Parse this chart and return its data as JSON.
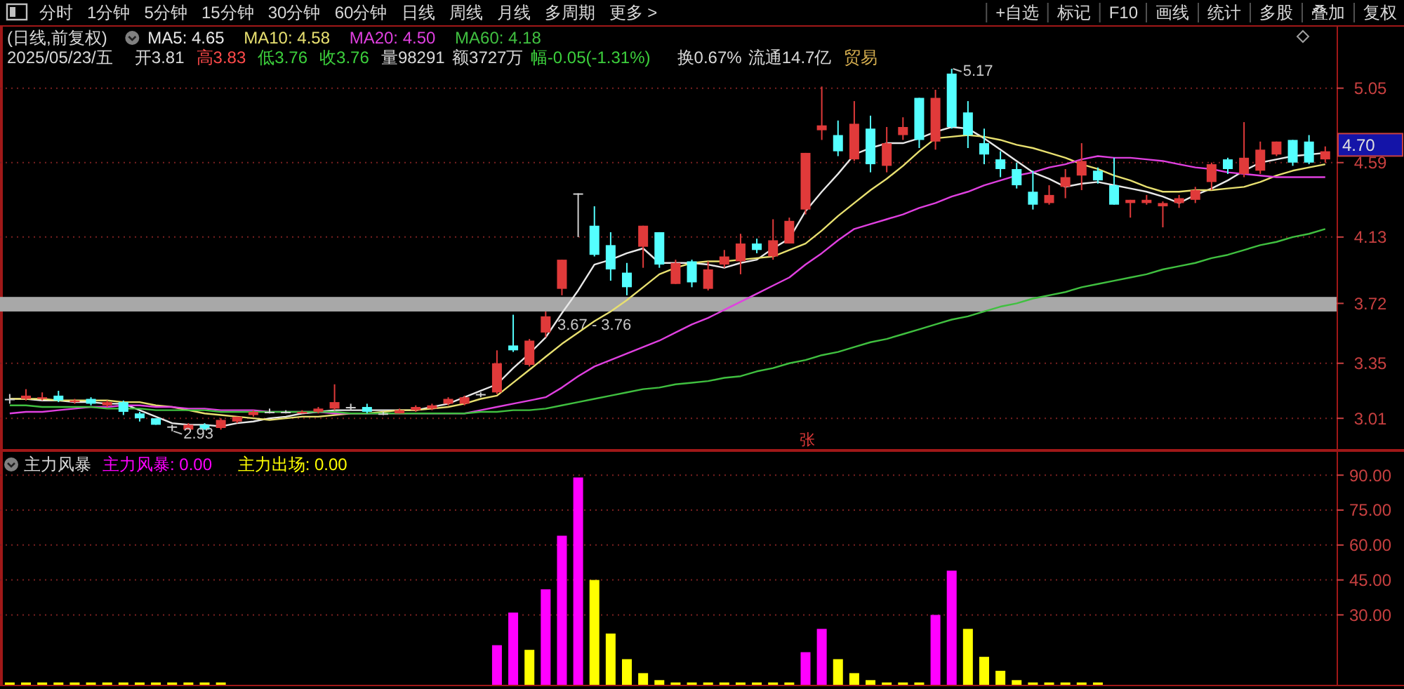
{
  "chart_data": [
    {
      "type": "other",
      "annotations": [
        "分时",
        "1分钟",
        "5分钟",
        "15分钟",
        "30分钟",
        "60分钟",
        "日线",
        "周线",
        "月线",
        "多周期",
        "更多 >"
      ]
    },
    {
      "type": "other",
      "annotations": [
        "复权",
        "叠加",
        "多股",
        "统计",
        "画线",
        "F10",
        "标记",
        "+自选"
      ]
    },
    {
      "type": "other",
      "annotations": [
        "2025/05/23/五",
        "开3.81",
        "高3.83",
        "低3.76",
        "收3.76",
        "量98291",
        "额3727万",
        "幅-0.05(-1.31%)",
        "换0.67%",
        "流通14.7亿",
        "贸易"
      ]
    },
    {
      "type": "candlestick",
      "title": "(日线,前复权)",
      "legend": "top left",
      "grid": "y",
      "tick_labels": "y",
      "categories": [
        null,
        null,
        null,
        null,
        null,
        null,
        null,
        null,
        null,
        null,
        null,
        null,
        null,
        null,
        null,
        null,
        null,
        null,
        null,
        null,
        null,
        null,
        null,
        null,
        null,
        null,
        null,
        null,
        null,
        null,
        null,
        null,
        null,
        null,
        null,
        null,
        null,
        null,
        null,
        null,
        null,
        null,
        null,
        null,
        null,
        null,
        null,
        null,
        null,
        null,
        null,
        null,
        null,
        null,
        null,
        null,
        null,
        null,
        null,
        null,
        null,
        null,
        null,
        null,
        null,
        null,
        null,
        null,
        null,
        null,
        null,
        null,
        null,
        null,
        null,
        null,
        null,
        null,
        null,
        null,
        null,
        null
      ],
      "ylim": [
        2.82,
        5.43
      ],
      "yticks": [
        3.01,
        3.35,
        3.72,
        4.13,
        4.59,
        5.05
      ],
      "ohlc": [
        [
          3.13,
          3.16,
          3.1,
          3.13
        ],
        [
          3.13,
          3.19,
          3.12,
          3.15
        ],
        [
          3.13,
          3.17,
          3.12,
          3.14
        ],
        [
          3.15,
          3.18,
          3.11,
          3.12
        ],
        [
          3.11,
          3.13,
          3.1,
          3.12
        ],
        [
          3.13,
          3.14,
          3.09,
          3.1
        ],
        [
          3.09,
          3.12,
          3.08,
          3.11
        ],
        [
          3.11,
          3.12,
          3.03,
          3.05
        ],
        [
          3.04,
          3.05,
          2.99,
          3.01
        ],
        [
          3.01,
          3.01,
          2.97,
          2.97
        ],
        [
          2.96,
          2.97,
          2.93,
          2.96
        ],
        [
          2.94,
          2.98,
          2.94,
          2.97
        ],
        [
          2.97,
          2.98,
          2.94,
          2.94
        ],
        [
          2.95,
          3.01,
          2.94,
          3.0
        ],
        [
          2.99,
          3.02,
          2.98,
          3.02
        ],
        [
          3.03,
          3.06,
          3.02,
          3.05
        ],
        [
          3.05,
          3.07,
          3.04,
          3.05
        ],
        [
          3.05,
          3.06,
          3.04,
          3.05
        ],
        [
          3.04,
          3.06,
          3.04,
          3.05
        ],
        [
          3.05,
          3.08,
          3.04,
          3.07
        ],
        [
          3.07,
          3.22,
          3.06,
          3.11
        ],
        [
          3.08,
          3.1,
          3.06,
          3.08
        ],
        [
          3.08,
          3.1,
          3.04,
          3.05
        ],
        [
          3.04,
          3.05,
          3.03,
          3.04
        ],
        [
          3.04,
          3.07,
          3.04,
          3.06
        ],
        [
          3.06,
          3.09,
          3.05,
          3.08
        ],
        [
          3.07,
          3.1,
          3.06,
          3.09
        ],
        [
          3.1,
          3.14,
          3.09,
          3.13
        ],
        [
          3.1,
          3.15,
          3.09,
          3.14
        ],
        [
          3.16,
          3.17,
          3.14,
          3.16
        ],
        [
          3.17,
          3.43,
          3.16,
          3.35
        ],
        [
          3.46,
          3.65,
          3.42,
          3.43
        ],
        [
          3.34,
          3.5,
          3.33,
          3.49
        ],
        [
          3.54,
          3.67,
          3.51,
          3.64
        ],
        [
          3.81,
          3.99,
          3.77,
          3.99
        ],
        [
          4.4,
          4.4,
          4.13,
          4.4
        ],
        [
          4.2,
          4.32,
          4.01,
          4.02
        ],
        [
          4.08,
          4.16,
          3.86,
          3.93
        ],
        [
          3.91,
          3.97,
          3.77,
          3.82
        ],
        [
          4.07,
          4.2,
          3.94,
          4.2
        ],
        [
          4.16,
          4.16,
          3.94,
          3.96
        ],
        [
          3.84,
          3.99,
          3.84,
          3.97
        ],
        [
          3.98,
          3.99,
          3.82,
          3.85
        ],
        [
          3.81,
          3.98,
          3.8,
          3.93
        ],
        [
          3.96,
          4.05,
          3.94,
          4.01
        ],
        [
          3.98,
          4.15,
          3.9,
          4.09
        ],
        [
          4.09,
          4.12,
          4.03,
          4.05
        ],
        [
          4.01,
          4.24,
          3.99,
          4.11
        ],
        [
          4.09,
          4.25,
          4.09,
          4.23
        ],
        [
          4.3,
          4.65,
          4.27,
          4.65
        ],
        [
          4.79,
          5.06,
          4.73,
          4.82
        ],
        [
          4.76,
          4.85,
          4.63,
          4.66
        ],
        [
          4.61,
          4.97,
          4.6,
          4.83
        ],
        [
          4.8,
          4.88,
          4.53,
          4.58
        ],
        [
          4.57,
          4.81,
          4.53,
          4.71
        ],
        [
          4.76,
          4.87,
          4.73,
          4.81
        ],
        [
          4.99,
          4.99,
          4.68,
          4.73
        ],
        [
          4.72,
          5.04,
          4.67,
          4.99
        ],
        [
          5.14,
          5.17,
          4.8,
          4.81
        ],
        [
          4.9,
          4.97,
          4.68,
          4.76
        ],
        [
          4.71,
          4.8,
          4.58,
          4.64
        ],
        [
          4.61,
          4.66,
          4.5,
          4.55
        ],
        [
          4.55,
          4.59,
          4.43,
          4.45
        ],
        [
          4.41,
          4.54,
          4.3,
          4.33
        ],
        [
          4.34,
          4.45,
          4.33,
          4.39
        ],
        [
          4.44,
          4.55,
          4.37,
          4.5
        ],
        [
          4.51,
          4.71,
          4.42,
          4.6
        ],
        [
          4.54,
          4.56,
          4.46,
          4.48
        ],
        [
          4.45,
          4.62,
          4.33,
          4.33
        ],
        [
          4.34,
          4.36,
          4.25,
          4.36
        ],
        [
          4.34,
          4.39,
          4.33,
          4.36
        ],
        [
          4.32,
          4.35,
          4.19,
          4.34
        ],
        [
          4.34,
          4.39,
          4.31,
          4.37
        ],
        [
          4.36,
          4.44,
          4.34,
          4.42
        ],
        [
          4.47,
          4.59,
          4.42,
          4.58
        ],
        [
          4.61,
          4.62,
          4.52,
          4.55
        ],
        [
          4.52,
          4.84,
          4.5,
          4.62
        ],
        [
          4.54,
          4.72,
          4.52,
          4.67
        ],
        [
          4.64,
          4.72,
          4.63,
          4.72
        ],
        [
          4.73,
          4.73,
          4.57,
          4.59
        ],
        [
          4.72,
          4.76,
          4.58,
          4.59
        ],
        [
          4.61,
          4.69,
          4.59,
          4.66
        ]
      ],
      "series": [
        {
          "name": "MA5: 4.65",
          "type": "line",
          "color": "#e8e8e8",
          "values": [
            3.13,
            3.13,
            3.12,
            3.12,
            3.11,
            3.11,
            3.1,
            3.1,
            3.06,
            3.02,
            2.98,
            2.97,
            2.97,
            2.96,
            2.98,
            2.99,
            3.01,
            3.02,
            3.04,
            3.05,
            3.06,
            3.06,
            3.06,
            3.06,
            3.06,
            3.06,
            3.08,
            3.1,
            3.14,
            3.18,
            3.22,
            3.32,
            3.41,
            3.51,
            3.66,
            3.8,
            3.96,
            3.99,
            4.03,
            4.06,
            3.97,
            3.97,
            3.97,
            3.96,
            3.94,
            3.97,
            3.99,
            4.06,
            4.12,
            4.29,
            4.41,
            4.52,
            4.64,
            4.68,
            4.71,
            4.71,
            4.74,
            4.78,
            4.81,
            4.8,
            4.74,
            4.67,
            4.6,
            4.53,
            4.49,
            4.44,
            4.46,
            4.47,
            4.45,
            4.43,
            4.41,
            4.38,
            4.34,
            4.39,
            4.43,
            4.48,
            4.54,
            4.59,
            4.61,
            4.63,
            4.64,
            4.65
          ]
        },
        {
          "name": "MA10: 4.58",
          "type": "line",
          "color": "#e8e070",
          "values": [
            3.13,
            3.13,
            3.13,
            3.12,
            3.12,
            3.12,
            3.12,
            3.11,
            3.11,
            3.09,
            3.08,
            3.06,
            3.04,
            3.03,
            3.02,
            3.01,
            3.0,
            3.01,
            3.02,
            3.02,
            3.03,
            3.04,
            3.04,
            3.05,
            3.06,
            3.06,
            3.07,
            3.08,
            3.1,
            3.13,
            3.15,
            3.23,
            3.31,
            3.39,
            3.47,
            3.54,
            3.61,
            3.67,
            3.74,
            3.82,
            3.9,
            3.94,
            3.97,
            3.98,
            3.98,
            3.99,
            4.0,
            4.01,
            4.05,
            4.09,
            4.17,
            4.26,
            4.34,
            4.42,
            4.49,
            4.57,
            4.66,
            4.74,
            4.75,
            4.76,
            4.75,
            4.73,
            4.7,
            4.68,
            4.65,
            4.62,
            4.58,
            4.55,
            4.51,
            4.48,
            4.44,
            4.41,
            4.41,
            4.42,
            4.42,
            4.43,
            4.44,
            4.47,
            4.51,
            4.54,
            4.56,
            4.58
          ]
        },
        {
          "name": "MA20: 4.50",
          "type": "line",
          "color": "#e040e0",
          "values": [
            3.04,
            3.05,
            3.05,
            3.06,
            3.07,
            3.08,
            3.08,
            3.09,
            3.09,
            3.08,
            3.08,
            3.07,
            3.07,
            3.06,
            3.06,
            3.06,
            3.05,
            3.05,
            3.05,
            3.05,
            3.04,
            3.04,
            3.04,
            3.04,
            3.04,
            3.04,
            3.04,
            3.04,
            3.04,
            3.06,
            3.08,
            3.1,
            3.12,
            3.14,
            3.2,
            3.27,
            3.33,
            3.37,
            3.41,
            3.45,
            3.49,
            3.54,
            3.59,
            3.63,
            3.68,
            3.73,
            3.78,
            3.83,
            3.88,
            3.96,
            4.03,
            4.11,
            4.18,
            4.21,
            4.24,
            4.27,
            4.31,
            4.34,
            4.38,
            4.41,
            4.45,
            4.48,
            4.51,
            4.53,
            4.56,
            4.58,
            4.61,
            4.63,
            4.62,
            4.62,
            4.61,
            4.6,
            4.58,
            4.56,
            4.55,
            4.53,
            4.52,
            4.51,
            4.5,
            4.5,
            4.5,
            4.5
          ]
        },
        {
          "name": "MA60: 4.18",
          "type": "line",
          "color": "#40c040",
          "values": [
            3.09,
            3.09,
            3.08,
            3.08,
            3.08,
            3.08,
            3.07,
            3.07,
            3.07,
            3.06,
            3.06,
            3.06,
            3.06,
            3.05,
            3.05,
            3.05,
            3.05,
            3.05,
            3.05,
            3.05,
            3.05,
            3.04,
            3.04,
            3.04,
            3.04,
            3.04,
            3.04,
            3.04,
            3.04,
            3.05,
            3.05,
            3.06,
            3.06,
            3.07,
            3.09,
            3.11,
            3.13,
            3.15,
            3.17,
            3.19,
            3.2,
            3.22,
            3.23,
            3.24,
            3.26,
            3.27,
            3.3,
            3.32,
            3.35,
            3.37,
            3.4,
            3.42,
            3.45,
            3.48,
            3.5,
            3.53,
            3.56,
            3.59,
            3.62,
            3.64,
            3.67,
            3.7,
            3.72,
            3.75,
            3.77,
            3.79,
            3.82,
            3.84,
            3.86,
            3.88,
            3.9,
            3.93,
            3.95,
            3.97,
            4.0,
            4.02,
            4.05,
            4.08,
            4.1,
            4.13,
            4.15,
            4.18
          ]
        }
      ],
      "bands": [
        {
          "axis": "y",
          "from": 3.67,
          "to": 3.76,
          "label": "3.67 - 3.76",
          "color": "#a8a8a8"
        }
      ],
      "annotations": [
        "5.17",
        "2.93",
        "张",
        "4.70"
      ]
    },
    {
      "type": "bar",
      "title": "主力风暴",
      "legend": "top left",
      "grid": "y",
      "tick_labels": "y",
      "categories": [
        null,
        null,
        null,
        null,
        null,
        null,
        null,
        null,
        null,
        null,
        null,
        null,
        null,
        null,
        null,
        null,
        null,
        null,
        null,
        null,
        null,
        null,
        null,
        null,
        null,
        null,
        null,
        null,
        null,
        null,
        null,
        null,
        null,
        null,
        null,
        null,
        null,
        null,
        null,
        null,
        null,
        null,
        null,
        null,
        null,
        null,
        null,
        null,
        null,
        null,
        null,
        null,
        null,
        null,
        null,
        null,
        null,
        null,
        null,
        null,
        null,
        null,
        null,
        null,
        null,
        null,
        null,
        null,
        null,
        null,
        null,
        null,
        null,
        null,
        null,
        null,
        null,
        null,
        null,
        null,
        null,
        null
      ],
      "ylim": [
        0,
        100
      ],
      "yticks": [
        {
          "value": 30,
          "label": "30.00"
        },
        {
          "value": 45,
          "label": "45.00"
        },
        {
          "value": 60,
          "label": "60.00"
        },
        {
          "value": 75,
          "label": "75.00"
        },
        {
          "value": 90,
          "label": "90.00"
        }
      ],
      "series": [
        {
          "name": "主力风暴: 0.00",
          "color": "#ff00ff",
          "values": [
            0,
            0,
            0,
            0,
            0,
            0,
            0,
            0,
            0,
            0,
            0,
            0,
            0,
            0,
            0,
            0,
            0,
            0,
            0,
            0,
            0,
            0,
            0,
            0,
            0,
            0,
            0,
            0,
            0,
            0,
            17,
            31,
            0,
            41,
            64,
            89,
            0,
            0,
            0,
            0,
            0,
            0,
            0,
            0,
            0,
            0,
            0,
            0,
            0,
            14,
            24,
            0,
            0,
            0,
            0,
            0,
            0,
            30,
            49,
            0,
            0,
            0,
            0,
            0,
            0,
            0,
            0,
            0,
            0,
            0,
            0,
            0,
            0,
            0,
            0,
            0,
            0,
            0,
            0,
            0,
            0,
            0
          ]
        },
        {
          "name": "主力出场: 0.00",
          "color": "#ffff00",
          "values": [
            1,
            1,
            1,
            1,
            1,
            1,
            1,
            1,
            1,
            1,
            1,
            1,
            1,
            1,
            0,
            0,
            0,
            0,
            0,
            0,
            0,
            0,
            0,
            0,
            0,
            0,
            0,
            0,
            0,
            0,
            0,
            0,
            15,
            0,
            0,
            0,
            45,
            22,
            11,
            5,
            2,
            1,
            1,
            1,
            1,
            1,
            1,
            1,
            1,
            0,
            0,
            11,
            5,
            2,
            1,
            1,
            1,
            0,
            0,
            24,
            12,
            6,
            2,
            1,
            1,
            1,
            1,
            1,
            0,
            0,
            0,
            0,
            0,
            0,
            0,
            0,
            0,
            0,
            0,
            0,
            0,
            0
          ]
        }
      ]
    }
  ]
}
